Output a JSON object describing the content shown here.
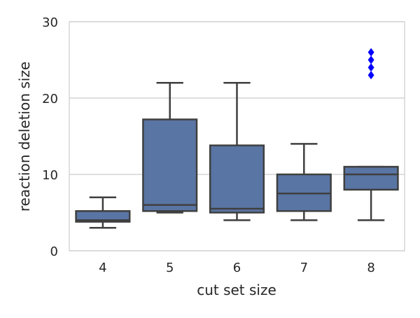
{
  "chart_data": {
    "type": "box",
    "xlabel": "cut set size",
    "ylabel": "reaction deletion size",
    "ylim": [
      0,
      30
    ],
    "yticks": [
      0,
      10,
      20,
      30
    ],
    "grid": "horizontal",
    "categories": [
      "4",
      "5",
      "6",
      "7",
      "8"
    ],
    "boxes": [
      {
        "category": "4",
        "whisker_low": 3,
        "q1": 3.8,
        "median": 4,
        "q3": 5.2,
        "whisker_high": 7,
        "outliers": []
      },
      {
        "category": "5",
        "whisker_low": 5,
        "q1": 5.2,
        "median": 6,
        "q3": 17.2,
        "whisker_high": 22,
        "outliers": []
      },
      {
        "category": "6",
        "whisker_low": 4,
        "q1": 5,
        "median": 5.5,
        "q3": 13.8,
        "whisker_high": 22,
        "outliers": []
      },
      {
        "category": "7",
        "whisker_low": 4,
        "q1": 5.2,
        "median": 7.5,
        "q3": 10,
        "whisker_high": 14,
        "outliers": []
      },
      {
        "category": "8",
        "whisker_low": 4,
        "q1": 8,
        "median": 10,
        "q3": 11,
        "whisker_high": 11,
        "outliers": [
          23,
          24,
          25,
          26
        ]
      }
    ],
    "colors": {
      "box_fill": "#5975a4",
      "line": "#3f3f3f",
      "outlier": "#0000ff",
      "grid": "#cccccc",
      "frame": "#cccccc"
    }
  }
}
